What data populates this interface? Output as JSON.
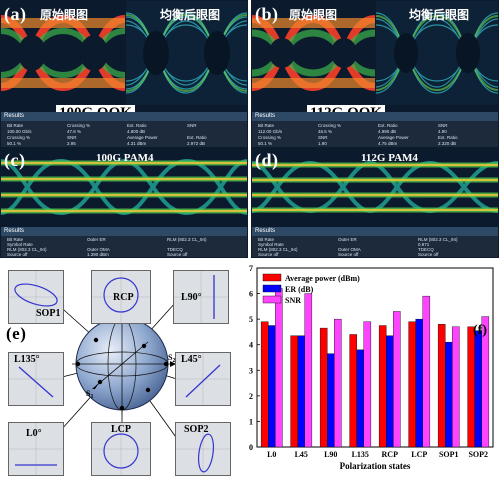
{
  "panels": {
    "a": {
      "label": "(a)",
      "left_title": "原始眼图",
      "right_title": "均衡后眼图",
      "caption": "100G OOK"
    },
    "b": {
      "label": "(b)",
      "left_title": "原始眼图",
      "right_title": "均衡后眼图",
      "caption": "112G OOK"
    },
    "c": {
      "label": "(c)",
      "caption": "100G PAM4"
    },
    "d": {
      "label": "(d)",
      "caption": "112G PAM4"
    }
  },
  "results_ab": {
    "title": "Results",
    "a_rows": [
      [
        "Bit Rate",
        "Crossing %",
        "Ext. Ratio",
        "SNR"
      ],
      [
        "100.00 Gb/s",
        "47.6 %",
        "4.800 dB",
        ""
      ],
      [
        "Crossing %",
        "SNR",
        "Average Power",
        "Ext. Ratio"
      ],
      [
        "50.1 %",
        "2.95",
        "4.31 dBm",
        "2.972 dB"
      ]
    ],
    "b_rows": [
      [
        "Bit Rate",
        "Crossing %",
        "Ext. Ratio",
        "SNR"
      ],
      [
        "112.00 Gb/s",
        "46.5 %",
        "4.990 dB",
        "4.90"
      ],
      [
        "Crossing %",
        "SNR",
        "Average Power",
        "Ext. Ratio"
      ],
      [
        "50.1 %",
        "1.90",
        "4.75 dBm",
        "2.320 dB"
      ]
    ]
  },
  "results_cd": {
    "title": "Results",
    "c_rows": [
      [
        "Bit Rate",
        "Outer ER",
        "RLM (802.3 CL_94)"
      ],
      [
        "Symbol Rate",
        "",
        ""
      ],
      [
        "RLM (802.3 CL_94)",
        "Outer OMA",
        "TDECQ"
      ],
      [
        "Source off",
        "1.390 dBm",
        "Source off"
      ]
    ],
    "d_rows": [
      [
        "Bit Rate",
        "Outer ER",
        "RLM (802.3 CL_94)"
      ],
      [
        "Symbol Rate",
        "",
        "0.971"
      ],
      [
        "RLM (802.3 CL_94)",
        "Outer OMA",
        "TDECQ"
      ],
      [
        "Source off",
        "Source off",
        "Source off"
      ]
    ]
  },
  "panel_e": {
    "label": "(e)",
    "scopes": [
      "SOP1",
      "RCP",
      "L90°",
      "L135°",
      "L45°",
      "L0°",
      "LCP",
      "SOP2"
    ],
    "sphere_axes": [
      "S3",
      "S2",
      "S1"
    ]
  },
  "colors": {
    "average_power": "#ff0000",
    "er": "#0000ff",
    "snr": "#ff44ff"
  },
  "chart_data": {
    "type": "bar",
    "panel_label": "(f)",
    "categories": [
      "L0",
      "L45",
      "L90",
      "L135",
      "RCP",
      "LCP",
      "SOP1",
      "SOP2"
    ],
    "series": [
      {
        "name": "Average power (dBm)",
        "values": [
          4.9,
          4.35,
          4.65,
          4.4,
          4.75,
          4.9,
          4.8,
          4.7
        ]
      },
      {
        "name": "ER (dB)",
        "values": [
          4.75,
          4.35,
          3.65,
          3.8,
          4.35,
          5.0,
          4.1,
          4.55
        ]
      },
      {
        "name": "SNR",
        "values": [
          6.2,
          6.0,
          5.0,
          4.9,
          5.3,
          5.9,
          4.7,
          5.1
        ]
      }
    ],
    "xlabel": "Polarization states",
    "ylabel": "",
    "ylim": [
      0,
      7
    ],
    "yticks": [
      "0",
      "1",
      "2",
      "3",
      "4",
      "5",
      "6",
      "7"
    ],
    "legend_position": "top-right",
    "grid": false
  }
}
